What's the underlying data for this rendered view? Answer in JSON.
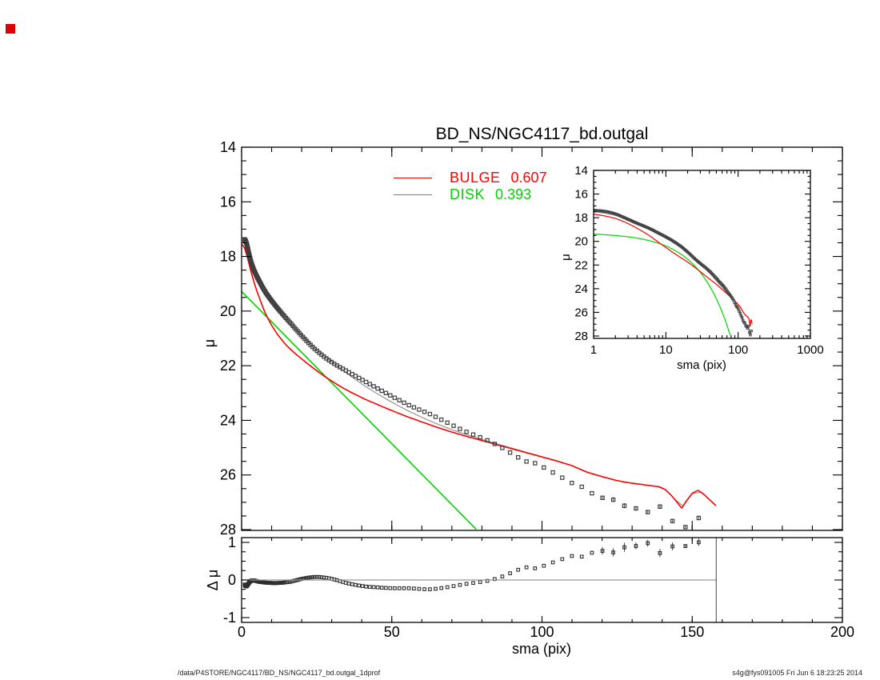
{
  "title": "BD_NS/NGC4117_bd.outgal",
  "corner_marker_color": "#dd0000",
  "legend": {
    "items": [
      {
        "label": "BULGE",
        "value": "0.607",
        "color": "#ff0000"
      },
      {
        "label": "DISK",
        "value": "0.393",
        "color": "#00d400"
      }
    ]
  },
  "footer": {
    "left": "/data/P4STORE/NGC4117/BD_NS/NGC4117_bd.outgal_1dprof",
    "right": "s4g@fys091005  Fri Jun  6 18:23:25 2014"
  },
  "chart_data": {
    "type": "line",
    "title": "BD_NS/NGC4117_bd.outgal",
    "main_panel": {
      "ylabel": "μ",
      "ylim": [
        28.05,
        14
      ],
      "xlim": [
        0,
        200
      ],
      "y_major_ticks": [
        14,
        16,
        18,
        20,
        22,
        24,
        26,
        28
      ],
      "y_tick_labels": [
        "14",
        "16",
        "18",
        "20",
        "22",
        "24",
        "26",
        "28"
      ],
      "y_minor_step": 0.5,
      "x_major_ticks": [
        0,
        50,
        100,
        150,
        200
      ],
      "x_minor_step": 10,
      "x_labels_shown": false
    },
    "inset_panel": {
      "xlabel": "sma (pix)",
      "ylabel": "μ",
      "xscale": "log",
      "xlim": [
        1,
        1000
      ],
      "ylim": [
        28.2,
        14
      ],
      "x_major_ticks": [
        1,
        10,
        100,
        1000
      ],
      "x_tick_labels": [
        "1",
        "10",
        "100",
        "1000"
      ],
      "y_major_ticks": [
        14,
        16,
        18,
        20,
        22,
        24,
        26,
        28
      ],
      "y_tick_labels": [
        "14",
        "16",
        "18",
        "20",
        "22",
        "24",
        "26",
        "28"
      ],
      "y_minor_step": 0.5
    },
    "residual_panel": {
      "ylabel": "Δ μ",
      "xlabel": "sma (pix)",
      "ylim": [
        -1.13,
        1.13
      ],
      "xlim": [
        0,
        200
      ],
      "y_major_ticks": [
        1,
        0,
        -1
      ],
      "y_tick_labels": [
        "1",
        "0",
        "-1"
      ],
      "y_minor_step": 0.25,
      "x_major_ticks": [
        0,
        50,
        100,
        150,
        200
      ],
      "x_tick_labels": [
        "0",
        "50",
        "100",
        "150",
        "200"
      ],
      "x_minor_step": 10,
      "zero_line": 0,
      "zero_line_span_sma": [
        0,
        158
      ],
      "vertical_line_sma": 158
    },
    "series": {
      "observed": {
        "name": "observed surface-brightness profile",
        "marker": "open-square",
        "color": "#3f3f3f",
        "derivation": "model_plus_residual",
        "sampling": {
          "s_min": 1.0,
          "s_max": 155.6,
          "geometric_growth": 1.03
        },
        "error_bars_from_sma": 119,
        "error_mag": 0.1
      },
      "bulge": {
        "name": "BULGE",
        "fraction": 0.607,
        "color": "#ff0000",
        "anchors": [
          [
            0.3,
            17.58
          ],
          [
            1,
            17.7
          ],
          [
            1.5,
            17.88
          ],
          [
            2,
            18.06
          ],
          [
            2.5,
            18.28
          ],
          [
            3,
            18.5
          ],
          [
            3.5,
            18.7
          ],
          [
            4,
            18.9
          ],
          [
            5,
            19.24
          ],
          [
            6,
            19.54
          ],
          [
            7,
            19.84
          ],
          [
            8,
            20.1
          ],
          [
            9,
            20.32
          ],
          [
            10,
            20.52
          ],
          [
            11,
            20.7
          ],
          [
            12,
            20.86
          ],
          [
            13,
            21.0
          ],
          [
            14,
            21.14
          ],
          [
            15,
            21.26
          ],
          [
            16,
            21.37
          ],
          [
            17,
            21.47
          ],
          [
            18,
            21.57
          ],
          [
            19,
            21.66
          ],
          [
            20,
            21.75
          ],
          [
            22,
            21.93
          ],
          [
            24,
            22.1
          ],
          [
            26,
            22.26
          ],
          [
            28,
            22.42
          ],
          [
            30,
            22.56
          ],
          [
            32,
            22.7
          ],
          [
            34,
            22.83
          ],
          [
            36,
            22.95
          ],
          [
            38,
            23.06
          ],
          [
            40,
            23.17
          ],
          [
            42,
            23.27
          ],
          [
            45,
            23.41
          ],
          [
            48,
            23.55
          ],
          [
            50,
            23.64
          ],
          [
            52,
            23.73
          ],
          [
            55,
            23.86
          ],
          [
            58,
            23.98
          ],
          [
            60,
            24.06
          ],
          [
            65,
            24.25
          ],
          [
            70,
            24.43
          ],
          [
            75,
            24.59
          ],
          [
            80,
            24.74
          ],
          [
            85,
            24.89
          ],
          [
            90,
            25.04
          ],
          [
            95,
            25.19
          ],
          [
            100,
            25.34
          ],
          [
            105,
            25.49
          ],
          [
            110,
            25.66
          ],
          [
            115,
            25.9
          ],
          [
            120,
            26.06
          ],
          [
            124,
            26.18
          ],
          [
            128,
            26.27
          ],
          [
            132,
            26.33
          ],
          [
            136,
            26.39
          ],
          [
            139,
            26.43
          ],
          [
            141,
            26.53
          ],
          [
            143,
            26.74
          ],
          [
            145,
            27.0
          ],
          [
            146.5,
            27.22
          ],
          [
            148,
            26.96
          ],
          [
            150,
            26.67
          ],
          [
            152,
            26.56
          ],
          [
            154,
            26.72
          ],
          [
            156,
            26.93
          ],
          [
            158,
            27.13
          ]
        ]
      },
      "disk": {
        "name": "DISK",
        "fraction": 0.393,
        "color": "#00d400",
        "form": "exponential",
        "mu0": 19.28,
        "slope_mag_per_pix": 0.1115,
        "s_end_at_mu28": 78.2
      },
      "model_total": {
        "name": "bulge+disk model",
        "color": "#8a8a8a",
        "derivation": "flux_sum_of_bulge_and_disk"
      },
      "residual": {
        "name": "observed minus model",
        "marker": "open-square",
        "color": "#2e2e2e",
        "anchors": [
          [
            1,
            -0.12
          ],
          [
            1.3,
            -0.16
          ],
          [
            1.6,
            -0.17
          ],
          [
            2,
            -0.13
          ],
          [
            2.5,
            -0.07
          ],
          [
            3,
            -0.03
          ],
          [
            3.5,
            -0.01
          ],
          [
            4,
            -0.01
          ],
          [
            5,
            -0.03
          ],
          [
            6,
            -0.05
          ],
          [
            7,
            -0.06
          ],
          [
            8,
            -0.07
          ],
          [
            10,
            -0.08
          ],
          [
            12,
            -0.08
          ],
          [
            14,
            -0.07
          ],
          [
            16,
            -0.05
          ],
          [
            18,
            -0.01
          ],
          [
            20,
            0.03
          ],
          [
            22,
            0.06
          ],
          [
            24,
            0.08
          ],
          [
            26,
            0.08
          ],
          [
            28,
            0.06
          ],
          [
            30,
            0.03
          ],
          [
            32,
            -0.01
          ],
          [
            34,
            -0.06
          ],
          [
            36,
            -0.1
          ],
          [
            38,
            -0.13
          ],
          [
            40,
            -0.16
          ],
          [
            42,
            -0.18
          ],
          [
            44,
            -0.19
          ],
          [
            46,
            -0.2
          ],
          [
            48,
            -0.21
          ],
          [
            50,
            -0.22
          ],
          [
            53,
            -0.22
          ],
          [
            56,
            -0.22
          ],
          [
            58,
            -0.23
          ],
          [
            60,
            -0.24
          ],
          [
            62,
            -0.25
          ],
          [
            64,
            -0.24
          ],
          [
            66,
            -0.22
          ],
          [
            68,
            -0.2
          ],
          [
            70,
            -0.17
          ],
          [
            72,
            -0.14
          ],
          [
            74,
            -0.11
          ],
          [
            76,
            -0.09
          ],
          [
            78,
            -0.07
          ],
          [
            80,
            -0.05
          ],
          [
            82,
            -0.02
          ],
          [
            84,
            0.02
          ],
          [
            86,
            0.07
          ],
          [
            88,
            0.13
          ],
          [
            90,
            0.2
          ],
          [
            92,
            0.27
          ],
          [
            94,
            0.32
          ],
          [
            96,
            0.36
          ],
          [
            98,
            0.3
          ],
          [
            100,
            0.36
          ],
          [
            102,
            0.42
          ],
          [
            104,
            0.48
          ],
          [
            106,
            0.53
          ],
          [
            108,
            0.6
          ],
          [
            110,
            0.64
          ],
          [
            112,
            0.56
          ],
          [
            114,
            0.66
          ],
          [
            116,
            0.71
          ],
          [
            118,
            0.75
          ],
          [
            120,
            0.78
          ],
          [
            122,
            0.7
          ],
          [
            124,
            0.74
          ],
          [
            126,
            0.95
          ],
          [
            128,
            0.84
          ],
          [
            130,
            0.88
          ],
          [
            132,
            0.92
          ],
          [
            134,
            0.95
          ],
          [
            136,
            1.0
          ],
          [
            138,
            0.88
          ],
          [
            140,
            0.62
          ],
          [
            142,
            0.88
          ],
          [
            144,
            0.9
          ],
          [
            146,
            0.92
          ],
          [
            148,
            0.9
          ],
          [
            150,
            0.93
          ],
          [
            152,
            1.0
          ],
          [
            154,
            1.02
          ],
          [
            155.5,
            1.22
          ]
        ],
        "error_bars_from_sma": 119
      }
    }
  }
}
